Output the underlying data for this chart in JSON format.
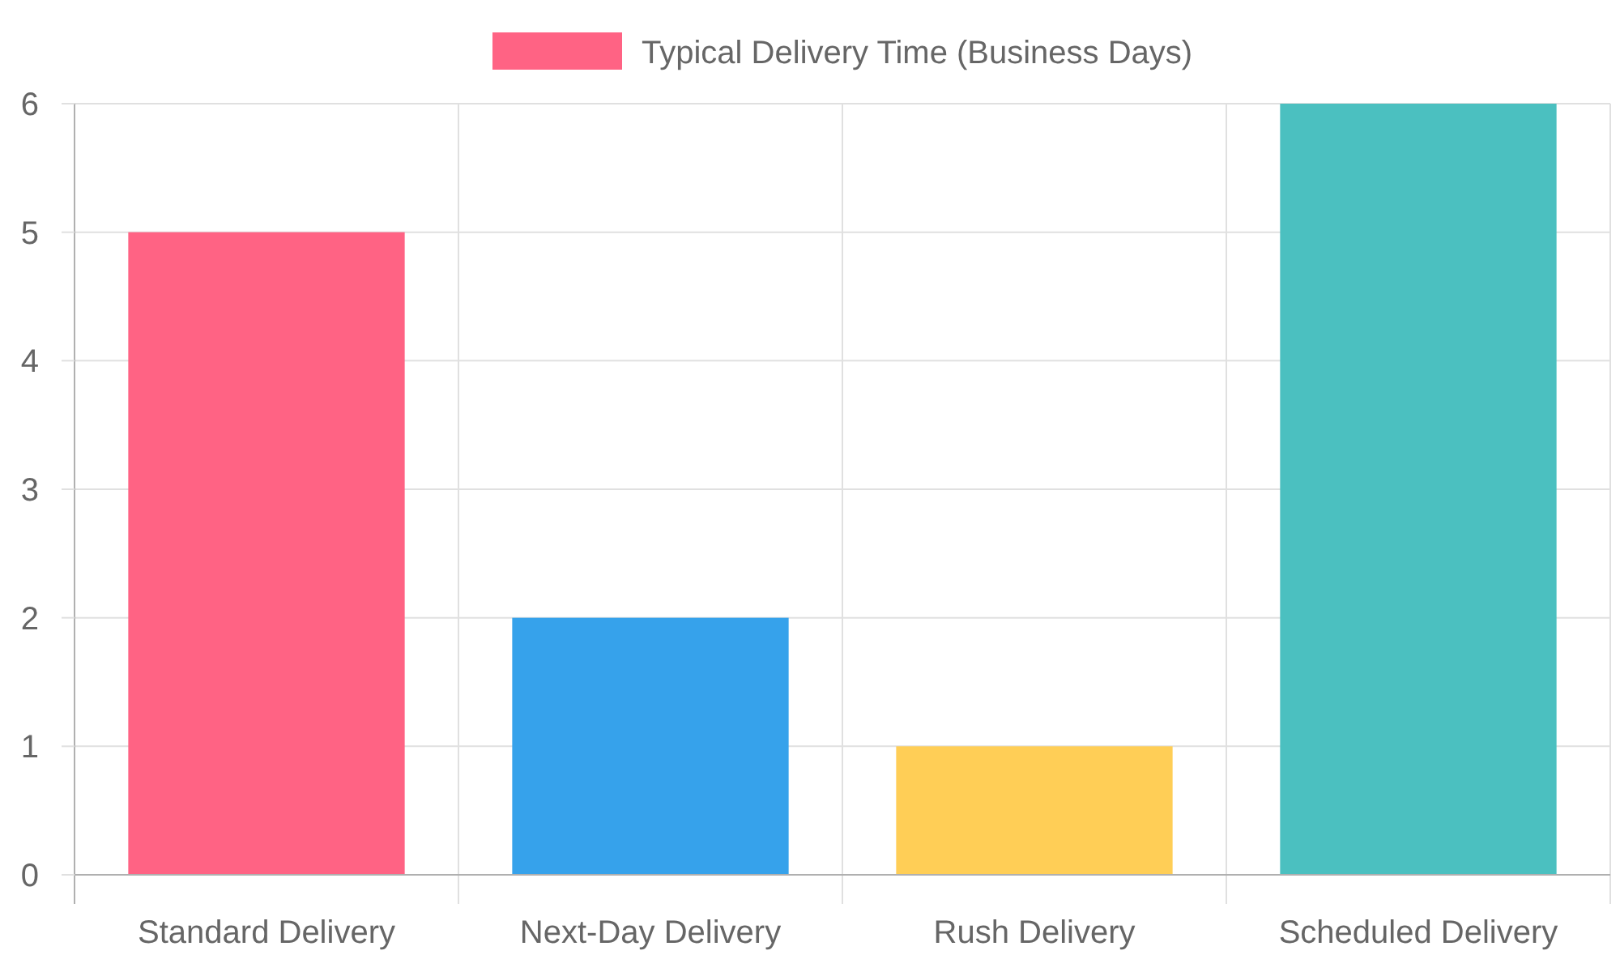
{
  "chart_data": {
    "type": "bar",
    "categories": [
      "Standard Delivery",
      "Next-Day Delivery",
      "Rush Delivery",
      "Scheduled Delivery"
    ],
    "series": [
      {
        "name": "Typical Delivery Time (Business Days)",
        "colors": [
          "#ff6384",
          "#36a2eb",
          "#ffce56",
          "#4bc0c0"
        ],
        "values": [
          5,
          2,
          1,
          6
        ]
      }
    ],
    "ylim": [
      0,
      6
    ],
    "yticks": [
      0,
      1,
      2,
      3,
      4,
      5,
      6
    ],
    "grid": true,
    "legend": "top"
  }
}
